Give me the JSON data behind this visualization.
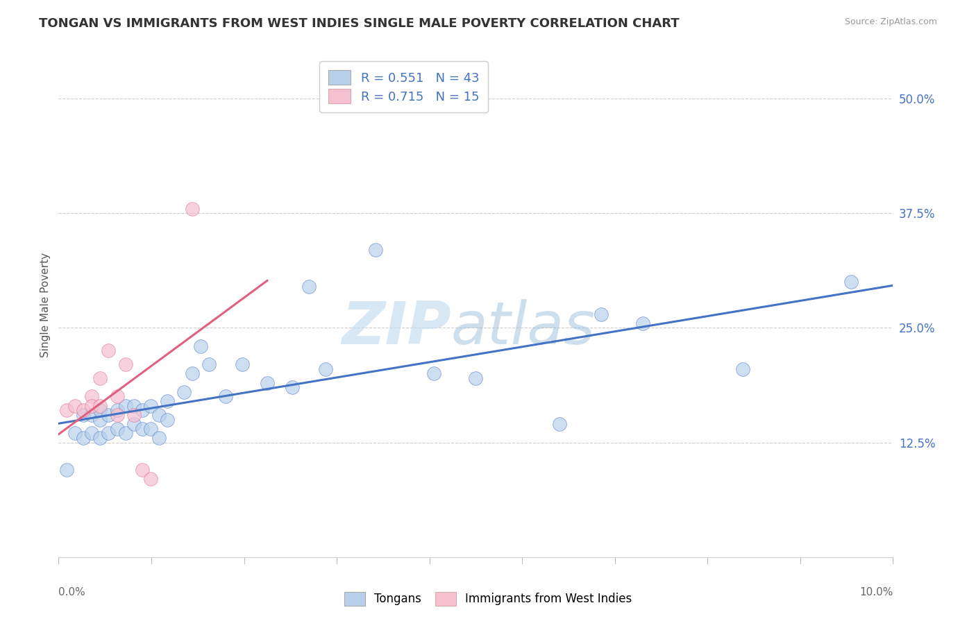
{
  "title": "TONGAN VS IMMIGRANTS FROM WEST INDIES SINGLE MALE POVERTY CORRELATION CHART",
  "source": "Source: ZipAtlas.com",
  "ylabel": "Single Male Poverty",
  "legend_label1": "Tongans",
  "legend_label2": "Immigrants from West Indies",
  "r1": "0.551",
  "n1": "43",
  "r2": "0.715",
  "n2": "15",
  "color1": "#b8d0ea",
  "color2": "#f5c0d0",
  "line_color1": "#4472c4",
  "line_color2": "#e06080",
  "legend_text_color": "#4472c4",
  "ytick_color": "#4472c4",
  "xlim": [
    0.0,
    0.1
  ],
  "ylim": [
    0.0,
    0.55
  ],
  "yticks": [
    0.125,
    0.25,
    0.375,
    0.5
  ],
  "ytick_labels": [
    "12.5%",
    "25.0%",
    "37.5%",
    "50.0%"
  ],
  "blue_x": [
    0.001,
    0.002,
    0.003,
    0.003,
    0.004,
    0.004,
    0.005,
    0.005,
    0.005,
    0.006,
    0.006,
    0.007,
    0.007,
    0.008,
    0.008,
    0.009,
    0.009,
    0.01,
    0.01,
    0.011,
    0.011,
    0.012,
    0.012,
    0.013,
    0.013,
    0.015,
    0.016,
    0.017,
    0.018,
    0.02,
    0.022,
    0.025,
    0.028,
    0.03,
    0.032,
    0.038,
    0.045,
    0.05,
    0.06,
    0.065,
    0.07,
    0.082,
    0.095
  ],
  "blue_y": [
    0.095,
    0.135,
    0.13,
    0.155,
    0.135,
    0.155,
    0.13,
    0.15,
    0.16,
    0.135,
    0.155,
    0.14,
    0.16,
    0.135,
    0.165,
    0.145,
    0.165,
    0.14,
    0.16,
    0.14,
    0.165,
    0.13,
    0.155,
    0.15,
    0.17,
    0.18,
    0.2,
    0.23,
    0.21,
    0.175,
    0.21,
    0.19,
    0.185,
    0.295,
    0.205,
    0.335,
    0.2,
    0.195,
    0.145,
    0.265,
    0.255,
    0.205,
    0.3
  ],
  "pink_x": [
    0.001,
    0.002,
    0.003,
    0.004,
    0.004,
    0.005,
    0.005,
    0.006,
    0.007,
    0.007,
    0.008,
    0.009,
    0.01,
    0.011,
    0.016
  ],
  "pink_y": [
    0.16,
    0.165,
    0.16,
    0.175,
    0.165,
    0.195,
    0.165,
    0.225,
    0.155,
    0.175,
    0.21,
    0.155,
    0.095,
    0.085,
    0.38
  ]
}
